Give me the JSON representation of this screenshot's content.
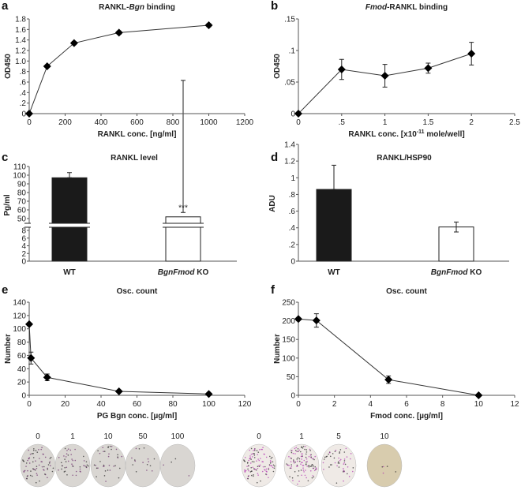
{
  "panel_letters": [
    "a",
    "b",
    "c",
    "d",
    "e",
    "f"
  ],
  "chart_data": [
    {
      "id": "a",
      "type": "line",
      "title_parts": [
        "RANKL-",
        "Bgn",
        " binding"
      ],
      "title_italic": [
        false,
        true,
        false
      ],
      "xlabel": "RANKL conc. [ng/ml]",
      "ylabel": "OD450",
      "xlim": [
        0,
        1200
      ],
      "ylim": [
        0,
        1.8
      ],
      "xticks": [
        0,
        200,
        400,
        600,
        800,
        1000,
        1200
      ],
      "xtick_labels": [
        "0",
        "200",
        "400",
        "600",
        "800",
        "1000",
        "1200"
      ],
      "yticks": [
        0,
        0.2,
        0.4,
        0.6,
        0.8,
        1.0,
        1.2,
        1.4,
        1.6,
        1.8
      ],
      "ytick_labels": [
        "0",
        ".2",
        ".4",
        ".6",
        ".8",
        "1.0",
        "1.2",
        "1.4",
        "1.6",
        "1.8"
      ],
      "x": [
        0,
        100,
        250,
        500,
        1000
      ],
      "y": [
        0,
        0.9,
        1.34,
        1.54,
        1.68
      ],
      "err": [
        0,
        0.02,
        0.03,
        0.03,
        0.03
      ]
    },
    {
      "id": "b",
      "type": "line",
      "title_parts": [
        "Fmod",
        "-RANKL binding"
      ],
      "title_italic": [
        true,
        false
      ],
      "xlabel": "RANKL conc. [x10",
      "xlabel_sup": "-11",
      "xlabel_end": " mole/well]",
      "ylabel": "OD450",
      "xlim": [
        0,
        2.5
      ],
      "ylim": [
        0,
        0.15
      ],
      "xticks": [
        0,
        0.5,
        1,
        1.5,
        2,
        2.5
      ],
      "xtick_labels": [
        "0",
        ".5",
        "1",
        "1.5",
        "2",
        "2.5"
      ],
      "yticks": [
        0,
        0.05,
        0.1,
        0.15
      ],
      "ytick_labels": [
        "0",
        ".05",
        ".1",
        ".15"
      ],
      "x": [
        0,
        0.5,
        1,
        1.5,
        2
      ],
      "y": [
        0,
        0.07,
        0.06,
        0.072,
        0.095
      ],
      "err": [
        0.002,
        0.016,
        0.018,
        0.008,
        0.018
      ]
    },
    {
      "id": "c",
      "type": "bar",
      "title": "RANKL level",
      "ylabel": "Pg/ml",
      "categories": [
        "WT",
        "KO"
      ],
      "category_italic": [
        "",
        "BgnFmod"
      ],
      "values": [
        97,
        52
      ],
      "err": [
        6,
        5
      ],
      "colors": [
        "#1a1a1a",
        "#ffffff"
      ],
      "annotations": [
        "",
        "***"
      ],
      "upper_ticks": [
        50,
        60,
        70,
        80,
        90,
        100,
        110
      ],
      "lower_ticks": [
        0,
        2,
        4,
        6,
        8
      ],
      "axis_break": [
        8,
        50
      ]
    },
    {
      "id": "d",
      "type": "bar",
      "title": "RANKL/HSP90",
      "ylabel": "ADU",
      "categories": [
        "WT",
        "KO"
      ],
      "category_italic": [
        "",
        "BgnFmod"
      ],
      "values": [
        0.86,
        0.41
      ],
      "err": [
        0.29,
        0.06
      ],
      "colors": [
        "#1a1a1a",
        "#ffffff"
      ],
      "ylim": [
        0,
        1.4
      ],
      "yticks": [
        0,
        0.2,
        0.4,
        0.6,
        0.8,
        1,
        1.2,
        1.4
      ],
      "ytick_labels": [
        "0",
        ".2",
        ".4",
        ".6",
        ".8",
        "1",
        "1.2",
        "1.4"
      ]
    },
    {
      "id": "e",
      "type": "line",
      "title": "Osc. count",
      "xlabel": "PG Bgn conc. [µg/ml]",
      "ylabel": "Number",
      "xlim": [
        0,
        120
      ],
      "ylim": [
        0,
        140
      ],
      "xticks": [
        0,
        20,
        40,
        60,
        80,
        100,
        120
      ],
      "xtick_labels": [
        "0",
        "20",
        "40",
        "60",
        "80",
        "100",
        "120"
      ],
      "yticks": [
        0,
        20,
        40,
        60,
        80,
        100,
        120,
        140
      ],
      "ytick_labels": [
        "0",
        "20",
        "40",
        "60",
        "80",
        "100",
        "120",
        "140"
      ],
      "x": [
        0,
        1,
        10,
        50,
        100
      ],
      "y": [
        107,
        56,
        27,
        6,
        2
      ],
      "err": [
        2,
        9,
        5,
        1,
        1
      ]
    },
    {
      "id": "f",
      "type": "line",
      "title": "Osc. count",
      "xlabel": "Fmod conc. [µg/ml]",
      "ylabel": "Number",
      "xlim": [
        0,
        12
      ],
      "ylim": [
        0,
        250
      ],
      "xticks": [
        0,
        2,
        4,
        6,
        8,
        10,
        12
      ],
      "xtick_labels": [
        "0",
        "2",
        "4",
        "6",
        "8",
        "10",
        "12"
      ],
      "yticks": [
        0,
        50,
        100,
        150,
        200,
        250
      ],
      "ytick_labels": [
        "0",
        "50",
        "100",
        "150",
        "200",
        "250"
      ],
      "x": [
        0,
        1,
        5,
        10
      ],
      "y": [
        205,
        201,
        42,
        0
      ],
      "err": [
        3,
        18,
        10,
        1
      ]
    }
  ],
  "wells_e": {
    "labels": [
      "0",
      "1",
      "10",
      "50",
      "100"
    ],
    "stain_density": [
      0.6,
      0.35,
      0.3,
      0.12,
      0.03
    ],
    "color": "#6a2a6a"
  },
  "wells_f": {
    "labels": [
      "0",
      "1",
      "5",
      "10"
    ],
    "stain_density": [
      0.9,
      0.9,
      0.4,
      0.05
    ],
    "color": "#b030b0"
  }
}
